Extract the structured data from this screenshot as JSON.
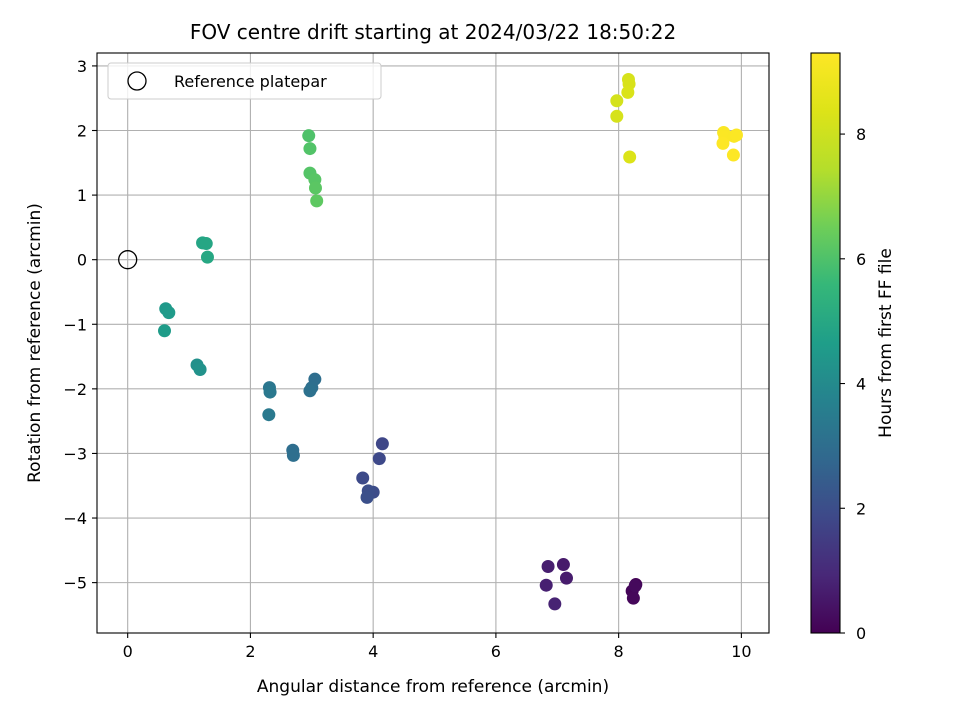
{
  "chart_data": {
    "type": "scatter",
    "title": "FOV centre drift starting at 2024/03/22 18:50:22",
    "xlabel": "Angular distance from reference (arcmin)",
    "ylabel": "Rotation from reference (arcmin)",
    "xlim": [
      -0.5,
      10.45
    ],
    "ylim": [
      -5.78,
      3.2
    ],
    "xticks": [
      0,
      2,
      4,
      6,
      8,
      10
    ],
    "xtick_labels": [
      "0",
      "2",
      "4",
      "6",
      "8",
      "10"
    ],
    "yticks": [
      -5,
      -4,
      -3,
      -2,
      -1,
      0,
      1,
      2,
      3
    ],
    "ytick_labels": [
      "−5",
      "−4",
      "−3",
      "−2",
      "−1",
      "0",
      "1",
      "2",
      "3"
    ],
    "grid": true,
    "legend": {
      "position": "upper-left",
      "entries": [
        "Reference platepar"
      ]
    },
    "reference_point": {
      "x": 0,
      "y": 0,
      "marker": "open-circle"
    },
    "colorbar": {
      "label": "Hours from first FF file",
      "range": [
        0,
        9.3
      ],
      "ticks": [
        0,
        2,
        4,
        6,
        8
      ],
      "tick_labels": [
        "0",
        "2",
        "4",
        "6",
        "8"
      ],
      "colormap": "viridis"
    },
    "points": [
      {
        "x": 8.28,
        "y": -5.03,
        "c": 0.05
      },
      {
        "x": 8.22,
        "y": -5.13,
        "c": 0.1
      },
      {
        "x": 8.24,
        "y": -5.24,
        "c": 0.15
      },
      {
        "x": 8.27,
        "y": -5.05,
        "c": 0.2
      },
      {
        "x": 7.1,
        "y": -4.72,
        "c": 0.6
      },
      {
        "x": 7.15,
        "y": -4.93,
        "c": 0.65
      },
      {
        "x": 6.85,
        "y": -4.75,
        "c": 0.7
      },
      {
        "x": 6.82,
        "y": -5.04,
        "c": 0.75
      },
      {
        "x": 6.96,
        "y": -5.33,
        "c": 0.8
      },
      {
        "x": 4.15,
        "y": -2.85,
        "c": 1.8
      },
      {
        "x": 4.1,
        "y": -3.08,
        "c": 1.85
      },
      {
        "x": 3.83,
        "y": -3.38,
        "c": 1.9
      },
      {
        "x": 4.0,
        "y": -3.6,
        "c": 1.95
      },
      {
        "x": 3.92,
        "y": -3.58,
        "c": 2.0
      },
      {
        "x": 3.9,
        "y": -3.68,
        "c": 2.05
      },
      {
        "x": 2.69,
        "y": -2.95,
        "c": 3.0
      },
      {
        "x": 2.7,
        "y": -3.03,
        "c": 3.05
      },
      {
        "x": 3.05,
        "y": -1.85,
        "c": 3.0
      },
      {
        "x": 3.0,
        "y": -1.98,
        "c": 3.05
      },
      {
        "x": 2.97,
        "y": -2.03,
        "c": 3.1
      },
      {
        "x": 2.31,
        "y": -1.98,
        "c": 3.3
      },
      {
        "x": 2.32,
        "y": -2.05,
        "c": 3.35
      },
      {
        "x": 2.3,
        "y": -2.4,
        "c": 3.4
      },
      {
        "x": 1.13,
        "y": -1.63,
        "c": 4.2
      },
      {
        "x": 1.18,
        "y": -1.7,
        "c": 4.25
      },
      {
        "x": 0.62,
        "y": -0.76,
        "c": 4.5
      },
      {
        "x": 0.67,
        "y": -0.82,
        "c": 4.55
      },
      {
        "x": 0.6,
        "y": -1.1,
        "c": 4.6
      },
      {
        "x": 1.22,
        "y": 0.26,
        "c": 4.9
      },
      {
        "x": 1.28,
        "y": 0.25,
        "c": 4.95
      },
      {
        "x": 1.3,
        "y": 0.04,
        "c": 5.0
      },
      {
        "x": 2.95,
        "y": 1.92,
        "c": 6.0
      },
      {
        "x": 2.97,
        "y": 1.72,
        "c": 6.05
      },
      {
        "x": 2.97,
        "y": 1.34,
        "c": 6.1
      },
      {
        "x": 3.05,
        "y": 1.24,
        "c": 6.15
      },
      {
        "x": 3.06,
        "y": 1.11,
        "c": 6.2
      },
      {
        "x": 3.08,
        "y": 0.91,
        "c": 6.25
      },
      {
        "x": 8.16,
        "y": 2.79,
        "c": 8.2
      },
      {
        "x": 8.17,
        "y": 2.72,
        "c": 8.25
      },
      {
        "x": 8.15,
        "y": 2.59,
        "c": 8.3
      },
      {
        "x": 7.97,
        "y": 2.46,
        "c": 8.15
      },
      {
        "x": 7.97,
        "y": 2.22,
        "c": 8.2
      },
      {
        "x": 8.18,
        "y": 1.59,
        "c": 8.35
      },
      {
        "x": 9.71,
        "y": 1.97,
        "c": 9.2
      },
      {
        "x": 9.73,
        "y": 1.9,
        "c": 9.25
      },
      {
        "x": 9.88,
        "y": 1.91,
        "c": 9.2
      },
      {
        "x": 9.92,
        "y": 1.93,
        "c": 9.25
      },
      {
        "x": 9.7,
        "y": 1.8,
        "c": 9.3
      },
      {
        "x": 9.87,
        "y": 1.62,
        "c": 9.3
      }
    ]
  }
}
